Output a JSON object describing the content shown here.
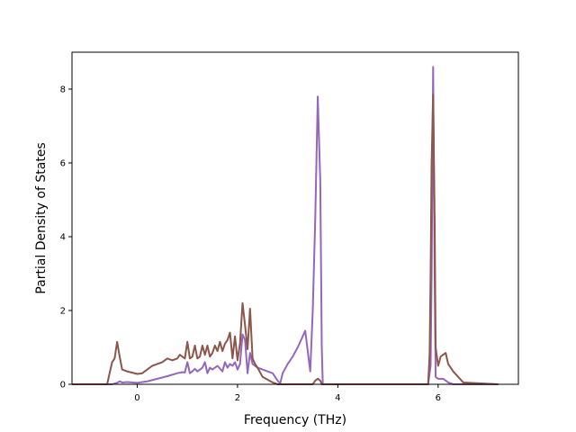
{
  "chart_data": {
    "type": "line",
    "title": "",
    "xlabel": "Frequency (THz)",
    "ylabel": "Partial Density of States",
    "xlim": [
      -1.3,
      7.6
    ],
    "ylim": [
      0,
      9
    ],
    "xticks": [
      0,
      2,
      4,
      6
    ],
    "yticks": [
      0,
      2,
      4,
      6,
      8
    ],
    "grid": false,
    "legend": "none",
    "series": [
      {
        "color": "#9467bd",
        "x": [
          -1.3,
          -0.6,
          -0.5,
          -0.45,
          -0.4,
          -0.35,
          -0.3,
          -0.2,
          0.0,
          0.2,
          0.4,
          0.6,
          0.8,
          0.9,
          0.95,
          1.0,
          1.05,
          1.1,
          1.15,
          1.2,
          1.3,
          1.35,
          1.4,
          1.45,
          1.5,
          1.6,
          1.7,
          1.75,
          1.8,
          1.85,
          1.9,
          1.95,
          2.0,
          2.05,
          2.1,
          2.15,
          2.2,
          2.25,
          2.3,
          2.4,
          2.5,
          2.6,
          2.7,
          2.8,
          2.85,
          2.9,
          3.0,
          3.1,
          3.2,
          3.25,
          3.3,
          3.35,
          3.4,
          3.45,
          3.5,
          3.55,
          3.6,
          3.65,
          3.68,
          3.7,
          3.8,
          4.0,
          5.0,
          5.8,
          5.85,
          5.87,
          5.9,
          5.93,
          5.95,
          6.0,
          6.1,
          6.2,
          6.3,
          7.2
        ],
        "values": [
          0,
          0,
          0,
          0.02,
          0.04,
          0.08,
          0.05,
          0.06,
          0.04,
          0.08,
          0.15,
          0.22,
          0.3,
          0.33,
          0.32,
          0.6,
          0.3,
          0.35,
          0.42,
          0.35,
          0.45,
          0.6,
          0.3,
          0.45,
          0.4,
          0.5,
          0.35,
          0.6,
          0.45,
          0.55,
          0.5,
          0.6,
          0.4,
          0.55,
          1.35,
          1.2,
          0.3,
          0.85,
          0.55,
          0.45,
          0.4,
          0.35,
          0.3,
          0.1,
          0.02,
          0.3,
          0.55,
          0.75,
          1.0,
          1.15,
          1.3,
          1.45,
          0.9,
          0.35,
          2.0,
          4.5,
          7.8,
          5.5,
          1.0,
          0.0,
          0,
          0,
          0,
          0,
          0.5,
          3.0,
          8.6,
          3.0,
          0.2,
          0.15,
          0.15,
          0.05,
          0.0,
          0
        ]
      },
      {
        "color": "#8c564b",
        "x": [
          -1.3,
          -0.6,
          -0.55,
          -0.5,
          -0.45,
          -0.4,
          -0.35,
          -0.3,
          -0.2,
          0.0,
          0.1,
          0.2,
          0.3,
          0.4,
          0.5,
          0.6,
          0.7,
          0.8,
          0.85,
          0.9,
          0.95,
          1.0,
          1.05,
          1.1,
          1.15,
          1.2,
          1.25,
          1.3,
          1.35,
          1.4,
          1.45,
          1.5,
          1.55,
          1.6,
          1.65,
          1.7,
          1.75,
          1.8,
          1.85,
          1.9,
          1.95,
          2.0,
          2.05,
          2.1,
          2.15,
          2.2,
          2.25,
          2.3,
          2.35,
          2.4,
          2.5,
          2.7,
          2.8,
          3.0,
          3.2,
          3.4,
          3.5,
          3.55,
          3.6,
          3.65,
          3.68,
          3.7,
          4.0,
          5.0,
          5.8,
          5.83,
          5.85,
          5.87,
          5.9,
          5.93,
          5.95,
          6.0,
          6.05,
          6.1,
          6.15,
          6.2,
          6.3,
          6.4,
          6.5,
          7.2
        ],
        "values": [
          0,
          0,
          0.3,
          0.6,
          0.7,
          1.15,
          0.75,
          0.4,
          0.35,
          0.28,
          0.3,
          0.4,
          0.5,
          0.55,
          0.6,
          0.7,
          0.65,
          0.7,
          0.8,
          0.75,
          0.7,
          1.15,
          0.7,
          0.75,
          1.05,
          0.7,
          0.75,
          1.05,
          0.8,
          1.05,
          0.75,
          0.85,
          1.05,
          0.9,
          1.15,
          0.9,
          1.1,
          1.2,
          1.4,
          0.7,
          1.3,
          0.65,
          1.1,
          2.2,
          1.6,
          0.95,
          2.05,
          0.7,
          0.55,
          0.45,
          0.2,
          0.05,
          0.0,
          0.0,
          0.0,
          0.0,
          0.0,
          0.1,
          0.15,
          0.1,
          0.0,
          0,
          0,
          0,
          0,
          0.8,
          3.0,
          6.0,
          7.85,
          4.5,
          1.0,
          0.5,
          0.75,
          0.8,
          0.85,
          0.55,
          0.35,
          0.2,
          0.05,
          0
        ]
      }
    ]
  }
}
